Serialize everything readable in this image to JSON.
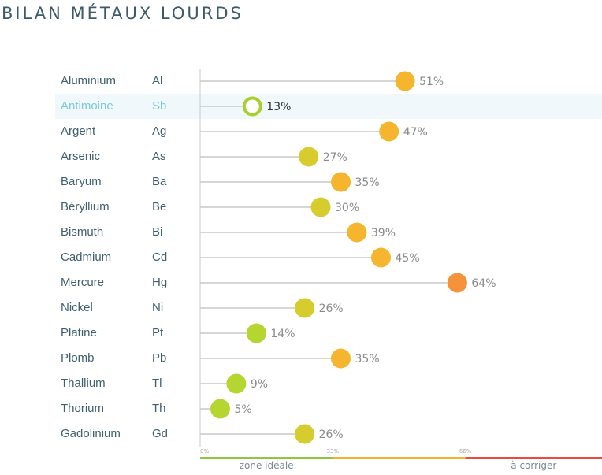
{
  "title": "BILAN MÉTAUX LOURDS",
  "chart_data": {
    "type": "lollipop",
    "xlabel": "",
    "xlim": [
      0,
      100
    ],
    "xticks": [
      "0%",
      "33%",
      "66%"
    ],
    "zones": [
      {
        "label": "zone idéale",
        "from": 0,
        "to": 33,
        "color": "#8dc63f"
      },
      {
        "label": "",
        "from": 33,
        "to": 66,
        "color": "#f0b429"
      },
      {
        "label": "à corriger",
        "from": 66,
        "to": 100,
        "color": "#e84c3d"
      }
    ],
    "highlighted": "Antimoine",
    "rows": [
      {
        "name": "Aluminium",
        "symbol": "Al",
        "value": 51,
        "label": "51%"
      },
      {
        "name": "Antimoine",
        "symbol": "Sb",
        "value": 13,
        "label": "13%"
      },
      {
        "name": "Argent",
        "symbol": "Ag",
        "value": 47,
        "label": "47%"
      },
      {
        "name": "Arsenic",
        "symbol": "As",
        "value": 27,
        "label": "27%"
      },
      {
        "name": "Baryum",
        "symbol": "Ba",
        "value": 35,
        "label": "35%"
      },
      {
        "name": "Béryllium",
        "symbol": "Be",
        "value": 30,
        "label": "30%"
      },
      {
        "name": "Bismuth",
        "symbol": "Bi",
        "value": 39,
        "label": "39%"
      },
      {
        "name": "Cadmium",
        "symbol": "Cd",
        "value": 45,
        "label": "45%"
      },
      {
        "name": "Mercure",
        "symbol": "Hg",
        "value": 64,
        "label": "64%"
      },
      {
        "name": "Nickel",
        "symbol": "Ni",
        "value": 26,
        "label": "26%"
      },
      {
        "name": "Platine",
        "symbol": "Pt",
        "value": 14,
        "label": "14%"
      },
      {
        "name": "Plomb",
        "symbol": "Pb",
        "value": 35,
        "label": "35%"
      },
      {
        "name": "Thallium",
        "symbol": "Tl",
        "value": 9,
        "label": "9%"
      },
      {
        "name": "Thorium",
        "symbol": "Th",
        "value": 5,
        "label": "5%"
      },
      {
        "name": "Gadolinium",
        "symbol": "Gd",
        "value": 26,
        "label": "26%"
      }
    ]
  }
}
